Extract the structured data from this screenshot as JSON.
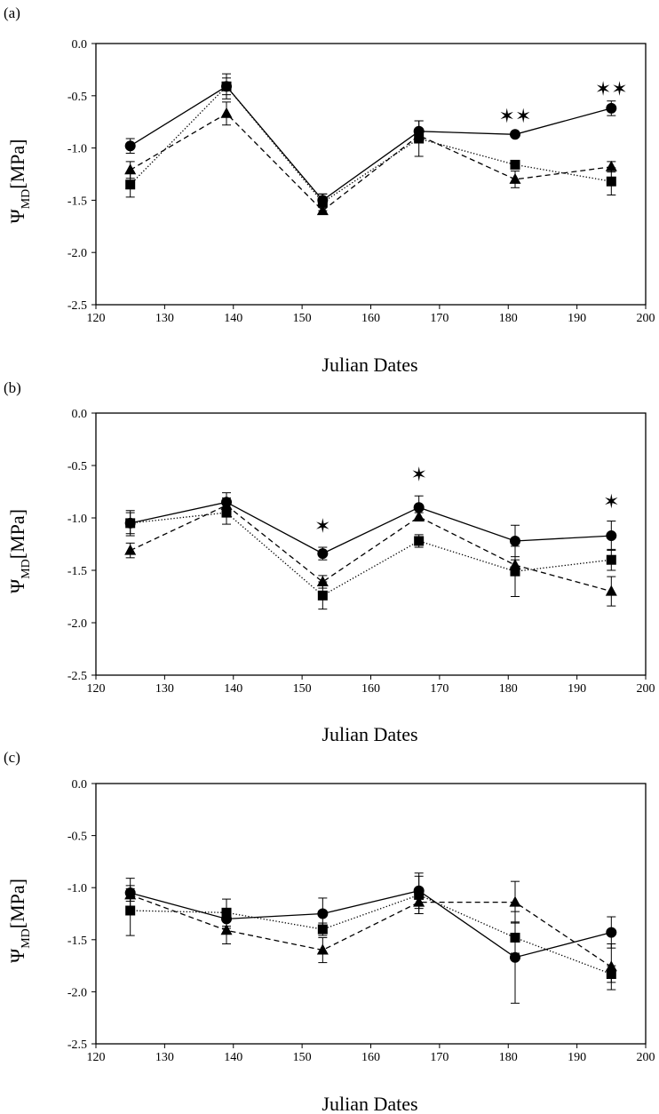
{
  "figure": {
    "panel_labels": [
      "(a)",
      "(b)",
      "(c)"
    ]
  },
  "chart_data": [
    {
      "type": "line",
      "panel": "(a)",
      "title": "",
      "xlabel": "Julian Dates",
      "ylabel": {
        "main": "Ψ",
        "sub": "MD",
        "unit": "[MPa]"
      },
      "xlim": [
        120,
        200
      ],
      "ylim": [
        -2.5,
        0.0
      ],
      "xticks": [
        "120",
        "130",
        "140",
        "150",
        "160",
        "170",
        "180",
        "190",
        "200"
      ],
      "yticks": [
        "0.0",
        "-0.5",
        "-1.0",
        "-1.5",
        "-2.0",
        "-2.5"
      ],
      "grid": false,
      "x": [
        125,
        139,
        153,
        167,
        181,
        195
      ],
      "series": [
        {
          "marker": "circle",
          "line": "solid",
          "values": [
            -0.98,
            -0.41,
            -1.5,
            -0.84,
            -0.87,
            -0.62
          ],
          "err": [
            0.07,
            0.08,
            0.06,
            0.1,
            0.02,
            0.07
          ]
        },
        {
          "marker": "square",
          "line": "dotted",
          "values": [
            -1.35,
            -0.41,
            -1.52,
            -0.91,
            -1.16,
            -1.32
          ],
          "err": [
            0.12,
            0.12,
            0.08,
            0.17,
            0.03,
            0.13
          ]
        },
        {
          "marker": "triangle",
          "line": "dashed",
          "values": [
            -1.21,
            -0.67,
            -1.6,
            -0.88,
            -1.3,
            -1.18
          ],
          "err": [
            0.08,
            0.11,
            0.03,
            0.05,
            0.08,
            0.05
          ]
        }
      ],
      "annotations": [
        {
          "text": "✶✶",
          "x": 181,
          "y": -0.69
        },
        {
          "text": "✶✶",
          "x": 195,
          "y": -0.43
        }
      ]
    },
    {
      "type": "line",
      "panel": "(b)",
      "title": "",
      "xlabel": "Julian Dates",
      "ylabel": {
        "main": "Ψ",
        "sub": "MD",
        "unit": "[MPa]"
      },
      "xlim": [
        120,
        200
      ],
      "ylim": [
        -2.5,
        0.0
      ],
      "xticks": [
        "120",
        "130",
        "140",
        "150",
        "160",
        "170",
        "180",
        "190",
        "200"
      ],
      "yticks": [
        "0.0",
        "-0.5",
        "-1.0",
        "-1.5",
        "-2.0",
        "-2.5"
      ],
      "grid": false,
      "x": [
        125,
        139,
        153,
        167,
        181,
        195
      ],
      "series": [
        {
          "marker": "circle",
          "line": "solid",
          "values": [
            -1.05,
            -0.85,
            -1.34,
            -0.9,
            -1.22,
            -1.17
          ],
          "err": [
            0.1,
            0.09,
            0.06,
            0.11,
            0.15,
            0.14
          ]
        },
        {
          "marker": "square",
          "line": "dotted",
          "values": [
            -1.05,
            -0.95,
            -1.74,
            -1.22,
            -1.51,
            -1.4
          ],
          "err": [
            0.12,
            0.11,
            0.13,
            0.06,
            0.24,
            0.1
          ]
        },
        {
          "marker": "triangle",
          "line": "dashed",
          "values": [
            -1.31,
            -0.88,
            -1.61,
            -0.99,
            -1.45,
            -1.7
          ],
          "err": [
            0.07,
            0.07,
            0.06,
            0.04,
            0.05,
            0.14
          ]
        }
      ],
      "annotations": [
        {
          "text": "✶",
          "x": 153,
          "y": -1.07
        },
        {
          "text": "✶",
          "x": 167,
          "y": -0.58
        },
        {
          "text": "✶",
          "x": 195,
          "y": -0.84
        }
      ]
    },
    {
      "type": "line",
      "panel": "(c)",
      "title": "",
      "xlabel": "Julian Dates",
      "ylabel": {
        "main": "Ψ",
        "sub": "MD",
        "unit": "[MPa]"
      },
      "xlim": [
        120,
        200
      ],
      "ylim": [
        -2.5,
        0.0
      ],
      "xticks": [
        "120",
        "130",
        "140",
        "150",
        "160",
        "170",
        "180",
        "190",
        "200"
      ],
      "yticks": [
        "0.0",
        "-0.5",
        "-1.0",
        "-1.5",
        "-2.0",
        "-2.5"
      ],
      "grid": false,
      "x": [
        125,
        139,
        153,
        167,
        181,
        195
      ],
      "series": [
        {
          "marker": "circle",
          "line": "solid",
          "values": [
            -1.05,
            -1.3,
            -1.25,
            -1.03,
            -1.67,
            -1.43
          ],
          "err": [
            0.14,
            0.09,
            0.15,
            0.17,
            0.44,
            0.15
          ]
        },
        {
          "marker": "square",
          "line": "dotted",
          "values": [
            -1.22,
            -1.24,
            -1.4,
            -1.07,
            -1.48,
            -1.83
          ],
          "err": [
            0.24,
            0.13,
            0.06,
            0.18,
            0.15,
            0.08
          ]
        },
        {
          "marker": "triangle",
          "line": "dashed",
          "values": [
            -1.07,
            -1.41,
            -1.6,
            -1.14,
            -1.14,
            -1.76
          ],
          "err": [
            0.06,
            0.13,
            0.12,
            0.11,
            0.2,
            0.22
          ]
        }
      ],
      "annotations": []
    }
  ]
}
